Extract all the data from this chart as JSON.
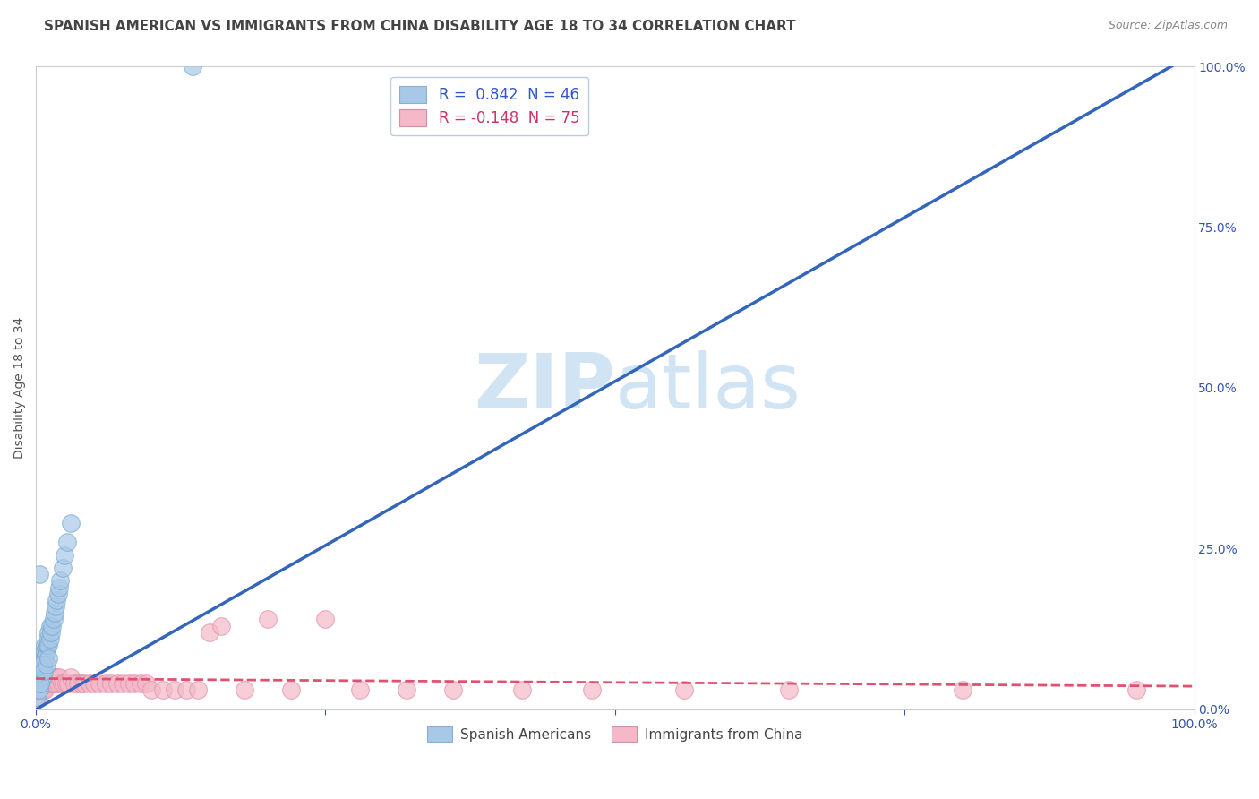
{
  "title": "SPANISH AMERICAN VS IMMIGRANTS FROM CHINA DISABILITY AGE 18 TO 34 CORRELATION CHART",
  "source": "Source: ZipAtlas.com",
  "ylabel": "Disability Age 18 to 34",
  "blue_R": 0.842,
  "blue_N": 46,
  "pink_R": -0.148,
  "pink_N": 75,
  "blue_color": "#a8c8e8",
  "blue_edge_color": "#7aaacf",
  "blue_line_color": "#3366bb",
  "pink_color": "#f4b8c8",
  "pink_edge_color": "#e090a8",
  "pink_line_color": "#e05070",
  "watermark_zip": "ZIP",
  "watermark_atlas": "atlas",
  "watermark_color": "#ddeeff",
  "bg_color": "#ffffff",
  "grid_color": "#cccccc",
  "title_color": "#444444",
  "source_color": "#888888",
  "legend_label_blue": "R =  0.842  N = 46",
  "legend_label_pink": "R = -0.148  N = 75",
  "legend_label_blue_bottom": "Spanish Americans",
  "legend_label_pink_bottom": "Immigrants from China",
  "blue_scatter_x": [
    0.001,
    0.002,
    0.003,
    0.003,
    0.004,
    0.004,
    0.005,
    0.005,
    0.006,
    0.006,
    0.006,
    0.007,
    0.007,
    0.007,
    0.008,
    0.008,
    0.008,
    0.009,
    0.009,
    0.01,
    0.01,
    0.011,
    0.011,
    0.012,
    0.012,
    0.013,
    0.014,
    0.015,
    0.016,
    0.017,
    0.018,
    0.019,
    0.02,
    0.021,
    0.023,
    0.025,
    0.027,
    0.03,
    0.003,
    0.004,
    0.005,
    0.007,
    0.009,
    0.011,
    0.003,
    0.135
  ],
  "blue_scatter_y": [
    0.02,
    0.03,
    0.04,
    0.05,
    0.04,
    0.05,
    0.05,
    0.06,
    0.05,
    0.07,
    0.08,
    0.07,
    0.08,
    0.09,
    0.08,
    0.09,
    0.1,
    0.09,
    0.1,
    0.1,
    0.11,
    0.1,
    0.12,
    0.11,
    0.13,
    0.12,
    0.13,
    0.14,
    0.15,
    0.16,
    0.17,
    0.18,
    0.19,
    0.2,
    0.22,
    0.24,
    0.26,
    0.29,
    0.03,
    0.04,
    0.07,
    0.06,
    0.07,
    0.08,
    0.21,
    1.0
  ],
  "pink_scatter_x": [
    0.001,
    0.002,
    0.002,
    0.003,
    0.003,
    0.004,
    0.004,
    0.005,
    0.005,
    0.005,
    0.006,
    0.006,
    0.006,
    0.007,
    0.007,
    0.007,
    0.008,
    0.008,
    0.008,
    0.009,
    0.009,
    0.01,
    0.01,
    0.011,
    0.011,
    0.012,
    0.012,
    0.013,
    0.014,
    0.015,
    0.016,
    0.017,
    0.018,
    0.019,
    0.02,
    0.022,
    0.024,
    0.026,
    0.028,
    0.03,
    0.033,
    0.036,
    0.039,
    0.042,
    0.046,
    0.05,
    0.055,
    0.06,
    0.065,
    0.07,
    0.075,
    0.08,
    0.085,
    0.09,
    0.095,
    0.1,
    0.11,
    0.12,
    0.13,
    0.14,
    0.15,
    0.16,
    0.18,
    0.2,
    0.22,
    0.25,
    0.28,
    0.32,
    0.36,
    0.42,
    0.48,
    0.56,
    0.65,
    0.8,
    0.95
  ],
  "pink_scatter_y": [
    0.02,
    0.02,
    0.03,
    0.03,
    0.04,
    0.03,
    0.04,
    0.03,
    0.04,
    0.05,
    0.03,
    0.04,
    0.05,
    0.03,
    0.04,
    0.05,
    0.03,
    0.04,
    0.05,
    0.04,
    0.05,
    0.04,
    0.05,
    0.04,
    0.05,
    0.04,
    0.05,
    0.04,
    0.04,
    0.05,
    0.04,
    0.04,
    0.05,
    0.04,
    0.05,
    0.04,
    0.04,
    0.04,
    0.04,
    0.05,
    0.04,
    0.04,
    0.04,
    0.04,
    0.04,
    0.04,
    0.04,
    0.04,
    0.04,
    0.04,
    0.04,
    0.04,
    0.04,
    0.04,
    0.04,
    0.03,
    0.03,
    0.03,
    0.03,
    0.03,
    0.12,
    0.13,
    0.03,
    0.14,
    0.03,
    0.14,
    0.03,
    0.03,
    0.03,
    0.03,
    0.03,
    0.03,
    0.03,
    0.03,
    0.03
  ],
  "xlim": [
    0,
    1.0
  ],
  "ylim": [
    0,
    1.0
  ],
  "xticks": [
    0.0,
    0.25,
    0.5,
    0.75,
    1.0
  ],
  "xticklabels": [
    "0.0%",
    "",
    "",
    "",
    "100.0%"
  ],
  "yticks_right": [
    0.0,
    0.25,
    0.5,
    0.75,
    1.0
  ],
  "yticklabels_right": [
    "0.0%",
    "25.0%",
    "50.0%",
    "75.0%",
    "100.0%"
  ],
  "blue_line_x": [
    0.0,
    1.0
  ],
  "blue_line_y": [
    0.0,
    1.02
  ],
  "pink_line_x": [
    0.0,
    1.0
  ],
  "pink_line_y": [
    0.048,
    0.036
  ]
}
